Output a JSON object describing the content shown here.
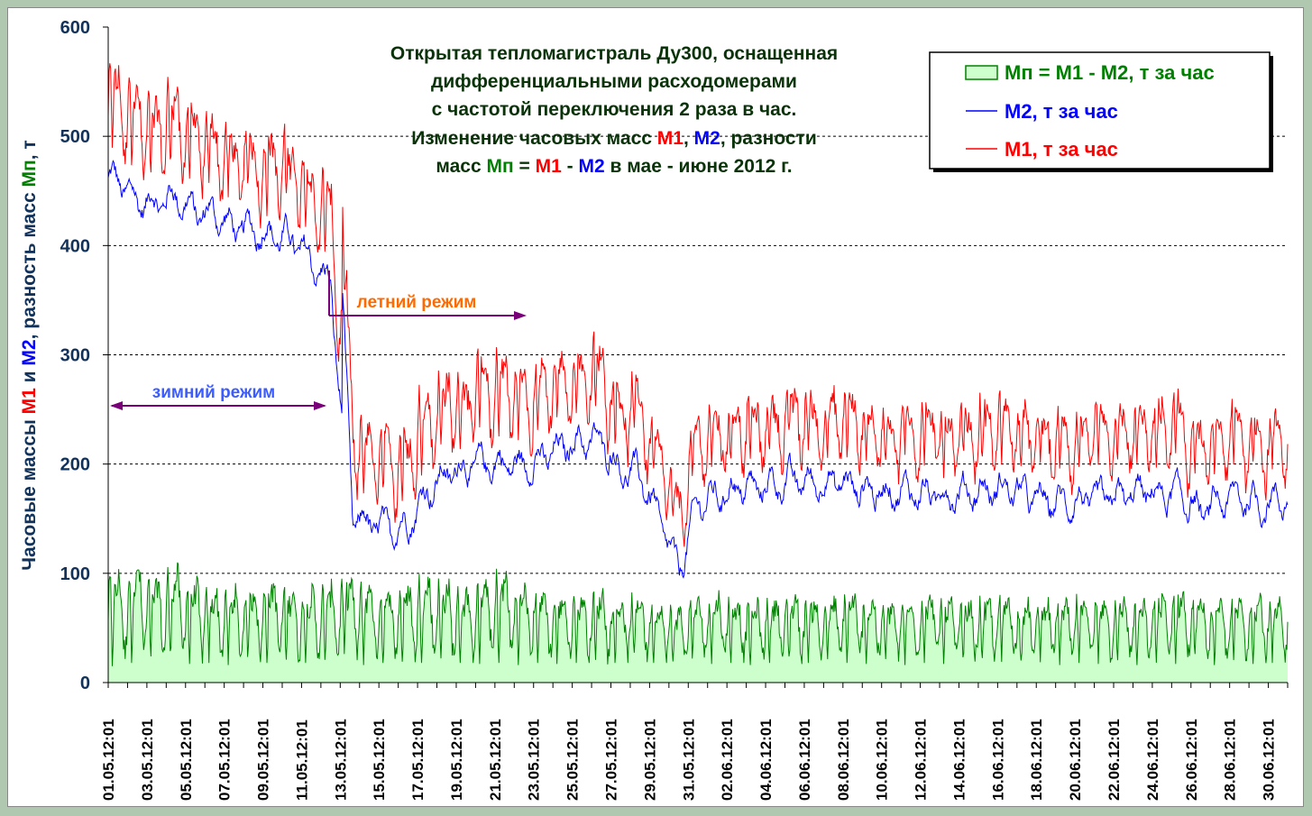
{
  "chart_data": {
    "type": "line",
    "title_lines": [
      "Открытая тепломагистраль Ду300, оснащенная",
      "дифференциальными расходомерами",
      "с частотой переключения 2 раза в час.",
      [
        "Изменение часовых масс ",
        "М1",
        ", ",
        "М2",
        ", разности"
      ],
      [
        "масс ",
        "Мп",
        " = ",
        "М1",
        " - ",
        "М2",
        " в мае - июне 2012 г."
      ]
    ],
    "ylabel_parts": [
      "Часовые массы ",
      "М1",
      " и ",
      "М2",
      ", разность масс ",
      "Мп",
      ", т"
    ],
    "ylim": [
      0,
      600
    ],
    "yticks": [
      "0",
      "100",
      "200",
      "300",
      "400",
      "500",
      "600"
    ],
    "grid": "horizontal dashed",
    "legend_placement": "top-right",
    "legend": [
      {
        "label": "Мп = М1 - М2, т за час",
        "color": "#008000",
        "kind": "area"
      },
      {
        "label": "М2, т за час",
        "color": "#0000ff",
        "kind": "line"
      },
      {
        "label": "М1, т за час",
        "color": "#ff0000",
        "kind": "line"
      }
    ],
    "xticks": [
      "01.05.12:01",
      "03.05.12:01",
      "05.05.12:01",
      "07.05.12:01",
      "09.05.12:01",
      "11.05.12:01",
      "13.05.12:01",
      "15.05.12:01",
      "17.05.12:01",
      "19.05.12:01",
      "21.05.12:01",
      "23.05.12:01",
      "25.05.12:01",
      "27.05.12:01",
      "29.05.12:01",
      "31.05.12:01",
      "02.06.12:01",
      "04.06.12:01",
      "06.06.12:01",
      "08.06.12:01",
      "10.06.12:01",
      "12.06.12:01",
      "14.06.12:01",
      "16.06.12:01",
      "18.06.12:01",
      "20.06.12:01",
      "22.06.12:01",
      "24.06.12:01",
      "26.06.12:01",
      "28.06.12:01",
      "30.06.12:01"
    ],
    "x_days": 61,
    "series_note": "hourly values; М1 = М2 + Мп",
    "m2_daily_mean": [
      460,
      440,
      440,
      445,
      430,
      430,
      415,
      415,
      410,
      405,
      385,
      365,
      150,
      145,
      140,
      145,
      175,
      190,
      198,
      200,
      200,
      198,
      205,
      215,
      222,
      220,
      195,
      190,
      150,
      100,
      165,
      170,
      178,
      178,
      182,
      185,
      182,
      185,
      180,
      175,
      175,
      175,
      172,
      172,
      175,
      175,
      178,
      172,
      165,
      165,
      165,
      168,
      170,
      175,
      172,
      172,
      155,
      165,
      172,
      162,
      168
    ],
    "mp_daily_max": [
      125,
      135,
      120,
      130,
      115,
      105,
      105,
      110,
      115,
      110,
      105,
      110,
      120,
      115,
      105,
      110,
      120,
      115,
      105,
      115,
      125,
      110,
      105,
      100,
      100,
      105,
      95,
      100,
      90,
      85,
      95,
      100,
      95,
      90,
      95,
      100,
      95,
      95,
      100,
      95,
      90,
      95,
      100,
      95,
      90,
      95,
      100,
      90,
      95,
      90,
      95,
      100,
      95,
      90,
      100,
      105,
      95,
      90,
      95,
      100,
      90
    ],
    "mp_daily_min": [
      15,
      18,
      16,
      18,
      17,
      18,
      16,
      17,
      18,
      16,
      18,
      17,
      18,
      16,
      18,
      17,
      18,
      16,
      18,
      17,
      18,
      16,
      18,
      17,
      18,
      16,
      18,
      17,
      18,
      15,
      18,
      17,
      18,
      16,
      18,
      17,
      18,
      16,
      18,
      17,
      18,
      16,
      18,
      17,
      18,
      16,
      18,
      17,
      18,
      16,
      18,
      17,
      18,
      16,
      18,
      17,
      18,
      16,
      18,
      17,
      18
    ],
    "annotations": [
      {
        "text": "зимний режим",
        "color": "#3b5cff"
      },
      {
        "text": "летний режим",
        "color": "#ff6a00"
      }
    ]
  }
}
